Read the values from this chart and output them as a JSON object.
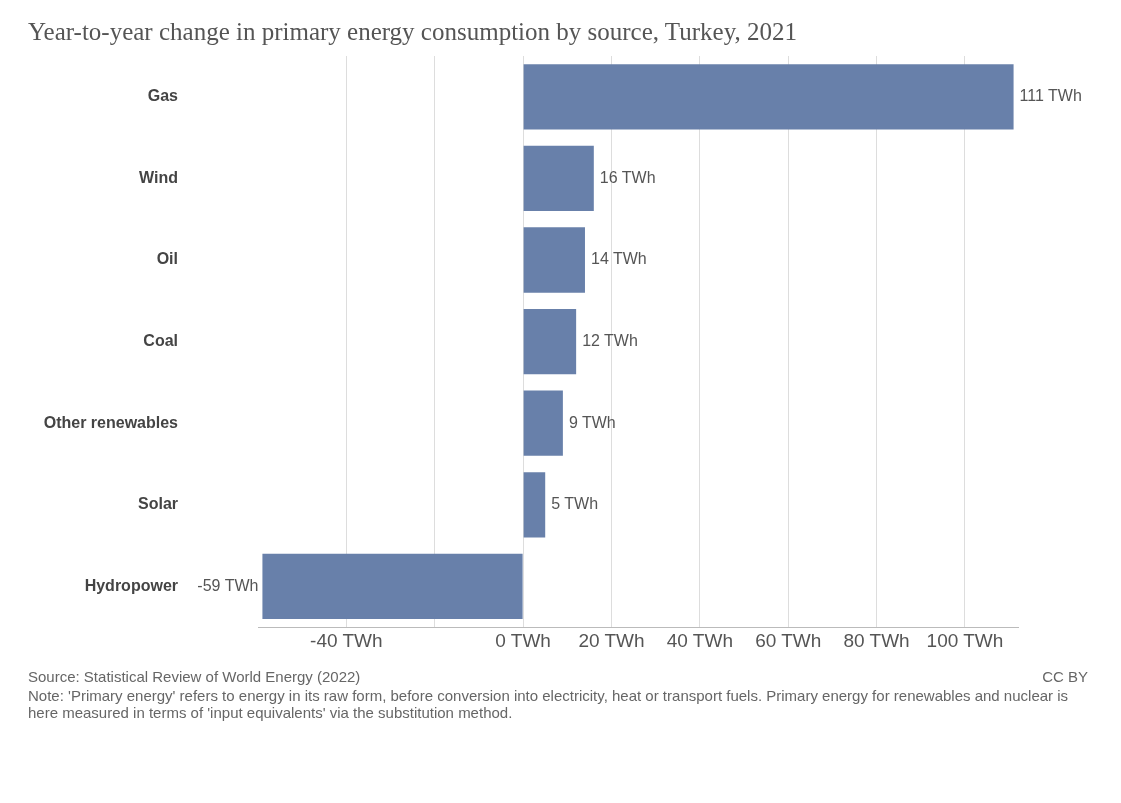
{
  "chart_data": {
    "type": "bar",
    "orientation": "horizontal",
    "title": "Year-to-year change in primary energy consumption by source, Turkey, 2021",
    "categories": [
      "Gas",
      "Wind",
      "Oil",
      "Coal",
      "Other renewables",
      "Solar",
      "Hydropower"
    ],
    "values": [
      111,
      16,
      14,
      12,
      9,
      5,
      -59
    ],
    "value_labels": [
      "111 TWh",
      "16 TWh",
      "14 TWh",
      "12 TWh",
      "9 TWh",
      "5 TWh",
      "-59 TWh"
    ],
    "color": "#6880aa",
    "xlim": [
      -60,
      112
    ],
    "xticks": [
      {
        "value": -40,
        "label": "-40 TWh"
      },
      {
        "value": -20,
        "label": null
      },
      {
        "value": 0,
        "label": "0 TWh"
      },
      {
        "value": 20,
        "label": "20 TWh"
      },
      {
        "value": 40,
        "label": "40 TWh"
      },
      {
        "value": 60,
        "label": "60 TWh"
      },
      {
        "value": 80,
        "label": "80 TWh"
      },
      {
        "value": 100,
        "label": "100 TWh"
      }
    ],
    "grid": "x",
    "legend": false,
    "annotations": [
      "Source: Statistical Review of World Energy (2022)",
      "CC BY",
      "Note: 'Primary energy' refers to energy in its raw form, before conversion into electricity, heat or transport fuels. Primary energy for renewables and nuclear is here measured in terms of 'input equivalents' via the substitution method."
    ]
  }
}
